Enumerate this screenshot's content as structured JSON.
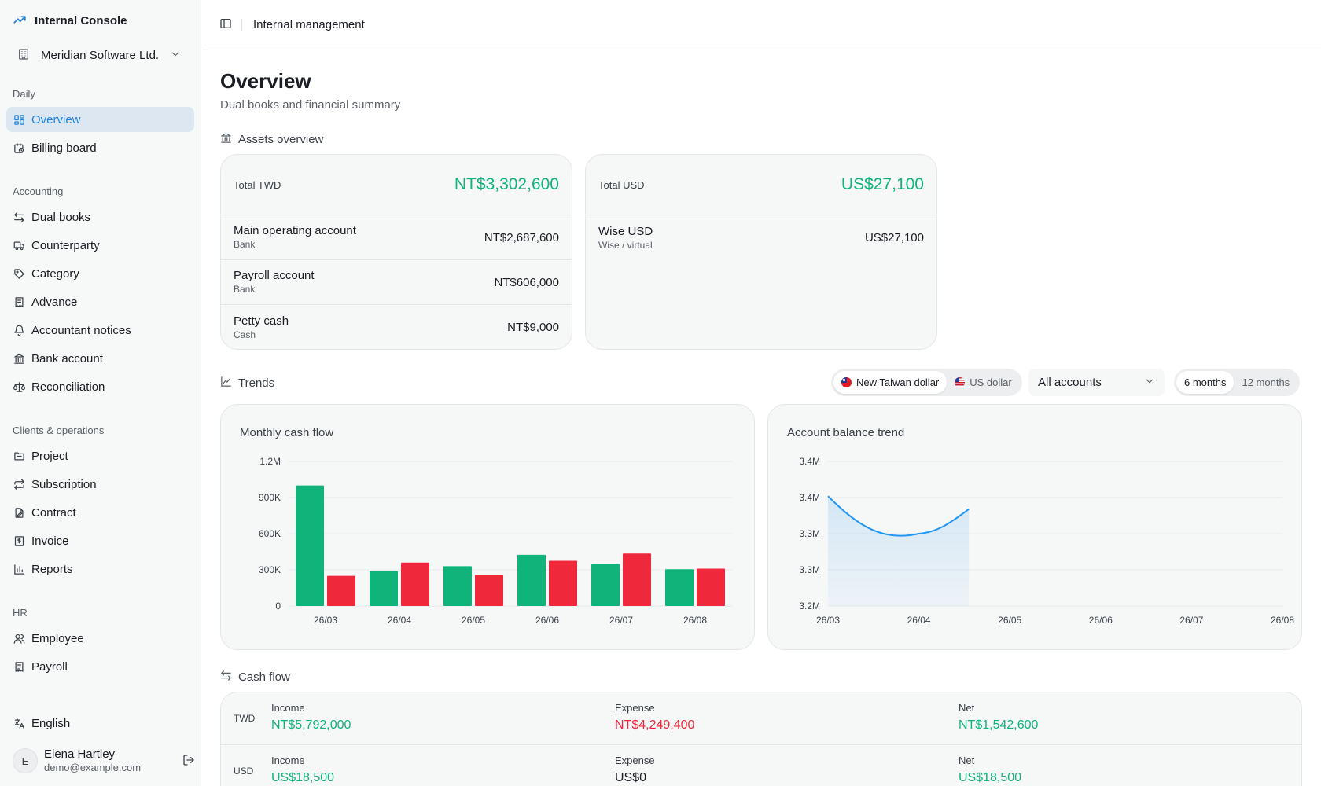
{
  "app": {
    "brand": "Internal Console",
    "org": "Meridian Software Ltd."
  },
  "header": {
    "breadcrumb": "Internal management"
  },
  "sidebar": {
    "sections": [
      {
        "label": "Daily",
        "items": [
          {
            "label": "Overview",
            "icon": "dashboard-icon",
            "active": true
          },
          {
            "label": "Billing board",
            "icon": "calendar-clock-icon"
          }
        ]
      },
      {
        "label": "Accounting",
        "items": [
          {
            "label": "Dual books",
            "icon": "swap-arrows-icon"
          },
          {
            "label": "Counterparty",
            "icon": "truck-icon"
          },
          {
            "label": "Category",
            "icon": "tag-icon"
          },
          {
            "label": "Advance",
            "icon": "receipt-icon"
          },
          {
            "label": "Accountant notices",
            "icon": "bell-icon"
          },
          {
            "label": "Bank account",
            "icon": "bank-icon"
          },
          {
            "label": "Reconciliation",
            "icon": "scale-icon"
          }
        ]
      },
      {
        "label": "Clients & operations",
        "items": [
          {
            "label": "Project",
            "icon": "folder-icon"
          },
          {
            "label": "Subscription",
            "icon": "repeat-icon"
          },
          {
            "label": "Contract",
            "icon": "contract-icon"
          },
          {
            "label": "Invoice",
            "icon": "invoice-icon"
          },
          {
            "label": "Reports",
            "icon": "bar-chart-icon"
          }
        ]
      },
      {
        "label": "HR",
        "items": [
          {
            "label": "Employee",
            "icon": "users-icon"
          },
          {
            "label": "Payroll",
            "icon": "payroll-icon"
          }
        ]
      }
    ],
    "language": "English",
    "user": {
      "initial": "E",
      "name": "Elena Hartley",
      "email": "demo@example.com"
    }
  },
  "page": {
    "title": "Overview",
    "subtitle": "Dual books and financial summary"
  },
  "assets": {
    "heading": "Assets overview",
    "twd": {
      "label": "Total TWD",
      "total": "NT$3,302,600",
      "accounts": [
        {
          "name": "Main operating account",
          "type": "Bank",
          "value": "NT$2,687,600"
        },
        {
          "name": "Payroll account",
          "type": "Bank",
          "value": "NT$606,000"
        },
        {
          "name": "Petty cash",
          "type": "Cash",
          "value": "NT$9,000"
        }
      ]
    },
    "usd": {
      "label": "Total USD",
      "total": "US$27,100",
      "accounts": [
        {
          "name": "Wise USD",
          "type": "Wise / virtual",
          "value": "US$27,100"
        }
      ]
    }
  },
  "trends": {
    "heading": "Trends",
    "currency_options": [
      "New Taiwan dollar",
      "US dollar"
    ],
    "currency_selected": "New Taiwan dollar",
    "account_select": "All accounts",
    "range_options": [
      "6 months",
      "12 months"
    ],
    "range_selected": "6 months"
  },
  "chart_data": [
    {
      "type": "bar",
      "title": "Monthly cash flow",
      "categories": [
        "26/03",
        "26/04",
        "26/05",
        "26/06",
        "26/07",
        "26/08"
      ],
      "series": [
        {
          "color": "#10b47a",
          "values": [
            1000000,
            290000,
            330000,
            425000,
            350000,
            305000
          ]
        },
        {
          "color": "#f0283c",
          "values": [
            250000,
            360000,
            260000,
            375000,
            435000,
            310000
          ]
        }
      ],
      "ylim": [
        0,
        1200000
      ],
      "yticks": [
        "0",
        "300K",
        "600K",
        "900K",
        "1.2M"
      ],
      "grid": true
    },
    {
      "type": "area",
      "title": "Account balance trend",
      "categories": [
        "26/03",
        "26/04",
        "26/05",
        "26/06",
        "26/07",
        "26/08"
      ],
      "series": [
        {
          "color": "#2196f3",
          "x": [
            "26/03",
            "26/04",
            "26/04.5"
          ],
          "values": [
            3352000,
            3300000,
            3334000
          ]
        }
      ],
      "ylim": [
        3200000,
        3400000
      ],
      "yticks": [
        "3.2M",
        "3.3M",
        "3.3M",
        "3.4M",
        "3.4M"
      ],
      "grid": true
    }
  ],
  "cashflow": {
    "heading": "Cash flow",
    "rows": [
      {
        "currency": "TWD",
        "income_label": "Income",
        "income": "NT$5,792,000",
        "expense_label": "Expense",
        "expense": "NT$4,249,400",
        "net_label": "Net",
        "net": "NT$1,542,600"
      },
      {
        "currency": "USD",
        "income_label": "Income",
        "income": "US$18,500",
        "expense_label": "Expense",
        "expense": "US$0",
        "net_label": "Net",
        "net": "US$18,500"
      }
    ],
    "colors": {
      "income": "#10b47a",
      "expense": "#f0283c",
      "neutral": "#1a1d23"
    }
  }
}
